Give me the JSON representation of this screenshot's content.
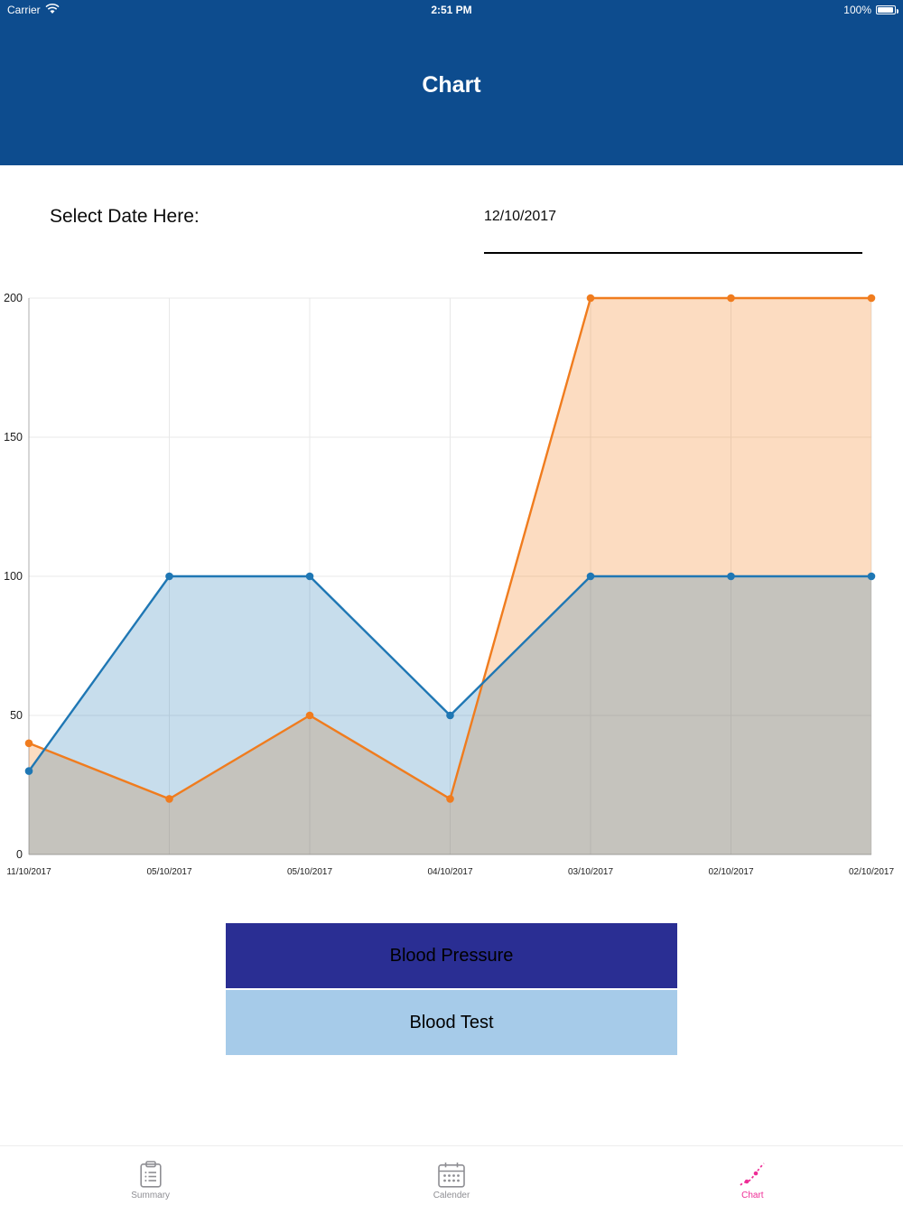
{
  "status_bar": {
    "carrier": "Carrier",
    "time": "2:51 PM",
    "battery_pct": "100%"
  },
  "header": {
    "title": "Chart"
  },
  "date_picker": {
    "label": "Select Date Here:",
    "value": "12/10/2017"
  },
  "chart_data": {
    "type": "area",
    "title": "",
    "xlabel": "",
    "ylabel": "",
    "categories": [
      "11/10/2017",
      "05/10/2017",
      "05/10/2017",
      "04/10/2017",
      "03/10/2017",
      "02/10/2017",
      "02/10/2017"
    ],
    "series": [
      {
        "name": "Blood Pressure",
        "color": "#1F77B4",
        "fill": "rgba(31,119,180,0.25)",
        "values": [
          30,
          100,
          100,
          50,
          100,
          100,
          100
        ]
      },
      {
        "name": "Blood Test",
        "color": "#F07C1E",
        "fill": "rgba(245,130,32,0.28)",
        "values": [
          40,
          20,
          50,
          20,
          200,
          200,
          200
        ]
      }
    ],
    "ylim": [
      0,
      200
    ],
    "yticks": [
      0,
      50,
      100,
      150,
      200
    ],
    "grid": true,
    "legend_position": "none"
  },
  "legend_buttons": [
    {
      "label": "Blood Pressure",
      "bg": "#2A2E93"
    },
    {
      "label": "Blood Test",
      "bg": "#A6CBE9"
    }
  ],
  "tab_bar": {
    "items": [
      {
        "label": "Summary",
        "icon": "clipboard-icon",
        "active": false
      },
      {
        "label": "Calender",
        "icon": "calendar-icon",
        "active": false
      },
      {
        "label": "Chart",
        "icon": "chart-line-icon",
        "active": true
      }
    ],
    "active_color": "#EE2D96",
    "inactive_color": "#8E8E93"
  },
  "colors": {
    "header_bg": "#0D4C8E"
  }
}
